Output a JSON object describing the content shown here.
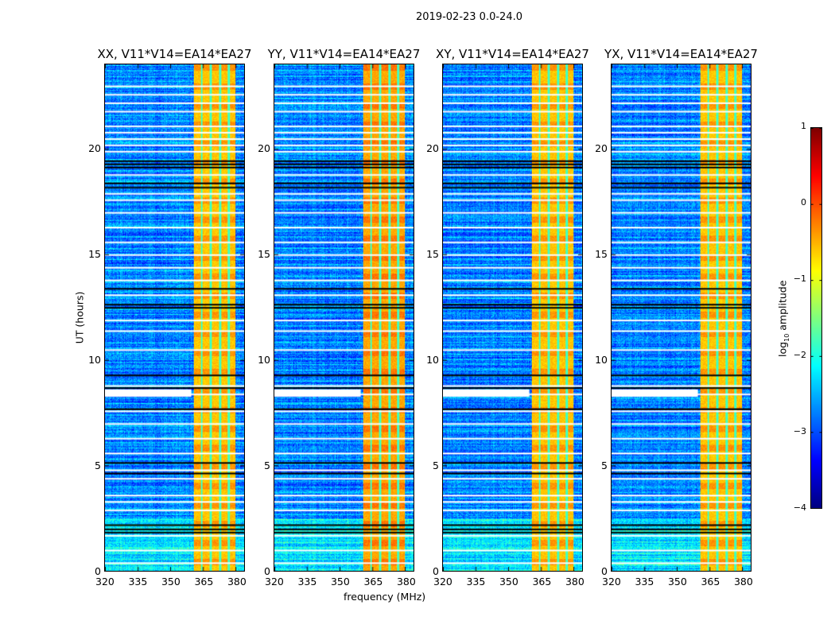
{
  "chart_data": {
    "type": "heatmap",
    "title": "2019-02-23 0.0-24.0",
    "xlabel": "frequency (MHz)",
    "ylabel": "UT (hours)",
    "xlim": [
      320,
      384
    ],
    "ylim": [
      0,
      24
    ],
    "xticks": [
      "320",
      "335",
      "350",
      "365",
      "380"
    ],
    "xtick_values": [
      320,
      335,
      350,
      365,
      380
    ],
    "yticks": [
      "0",
      "5",
      "10",
      "15",
      "20"
    ],
    "ytick_values": [
      0,
      5,
      10,
      15,
      20
    ],
    "panels": [
      {
        "title": "XX, V11*V14=EA14*EA27"
      },
      {
        "title": "YY, V11*V14=EA14*EA27"
      },
      {
        "title": "XY, V11*V14=EA14*EA27"
      },
      {
        "title": "YX, V11*V14=EA14*EA27"
      }
    ],
    "colormap": "jet",
    "colorbar": {
      "label_prefix": "log",
      "label_sub": "10",
      "label_suffix": " amplitude",
      "range": [
        -4,
        1
      ],
      "ticks": [
        "1",
        "0",
        "−1",
        "−2",
        "−3",
        "−4"
      ],
      "tick_values": [
        1,
        0,
        -1,
        -2,
        -3,
        -4
      ]
    },
    "background_log_amplitude": -2.8,
    "bright_band_mhz": [
      360.5,
      380
    ],
    "bright_band_log_amplitude": -0.6,
    "band_gaps_mhz": [
      364.3,
      368.5,
      372.8,
      376.8
    ],
    "flagged_white_hours": [
      23.0,
      22.6,
      22.2,
      21.8,
      21.1,
      20.8,
      20.5,
      20.2,
      19.9,
      18.8,
      17.9,
      17.6,
      17.0,
      16.3,
      15.6,
      15.0,
      14.4,
      13.8,
      13.1,
      11.9,
      11.4,
      10.5,
      8.8,
      8.4,
      7.6,
      7.0,
      6.3,
      5.6,
      4.8,
      4.4,
      3.6,
      3.3,
      2.9,
      1.7,
      1.0,
      0.4
    ],
    "flagged_black_hours": [
      19.45,
      19.3,
      19.15,
      18.4,
      18.2,
      13.4,
      12.65,
      12.5,
      9.3,
      8.7,
      7.7,
      5.15,
      4.65,
      2.2,
      2.0,
      1.85
    ]
  }
}
